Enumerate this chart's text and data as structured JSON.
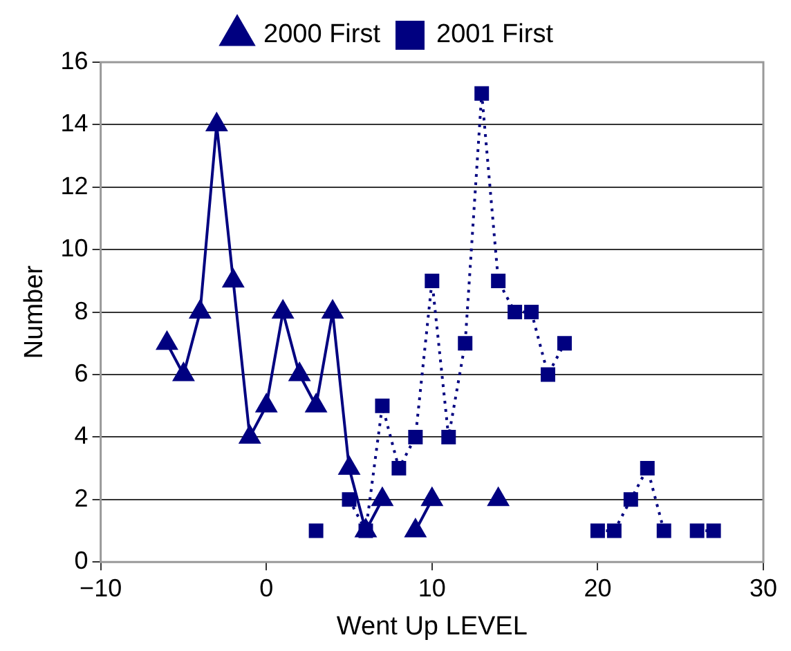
{
  "chart_data": {
    "type": "line",
    "xlabel": "Went Up LEVEL",
    "ylabel": "Number",
    "x": [
      -6,
      -5,
      -4,
      -3,
      -2,
      -1,
      0,
      1,
      2,
      3,
      4,
      5,
      6,
      7,
      8,
      9,
      10,
      11,
      12,
      13,
      14,
      15,
      16,
      17,
      18,
      19,
      20,
      21,
      22,
      23,
      24,
      25,
      26,
      27
    ],
    "series": [
      {
        "name": "2000 First",
        "color": "#000080",
        "marker": "triangle",
        "line_style": "solid",
        "values": [
          7,
          6,
          8,
          14,
          9,
          4,
          5,
          8,
          6,
          5,
          8,
          3,
          1,
          2,
          null,
          1,
          2,
          null,
          null,
          null,
          2,
          null,
          null,
          null,
          null,
          null,
          null,
          null,
          null,
          null,
          null,
          null,
          null,
          null
        ]
      },
      {
        "name": "2001 First",
        "color": "#000080",
        "marker": "square",
        "line_style": "dotted",
        "values": [
          null,
          null,
          null,
          null,
          null,
          null,
          null,
          null,
          null,
          1,
          null,
          2,
          1,
          5,
          3,
          4,
          9,
          4,
          7,
          15,
          9,
          8,
          8,
          6,
          7,
          null,
          1,
          1,
          2,
          3,
          1,
          null,
          1,
          1
        ]
      }
    ],
    "xlim": [
      -10,
      30
    ],
    "xticks": [
      -10,
      0,
      10,
      20,
      30
    ],
    "ylim": [
      0,
      16
    ],
    "yticks": [
      0,
      2,
      4,
      6,
      8,
      10,
      12,
      14,
      16
    ],
    "grid": "y",
    "legend": "top"
  }
}
